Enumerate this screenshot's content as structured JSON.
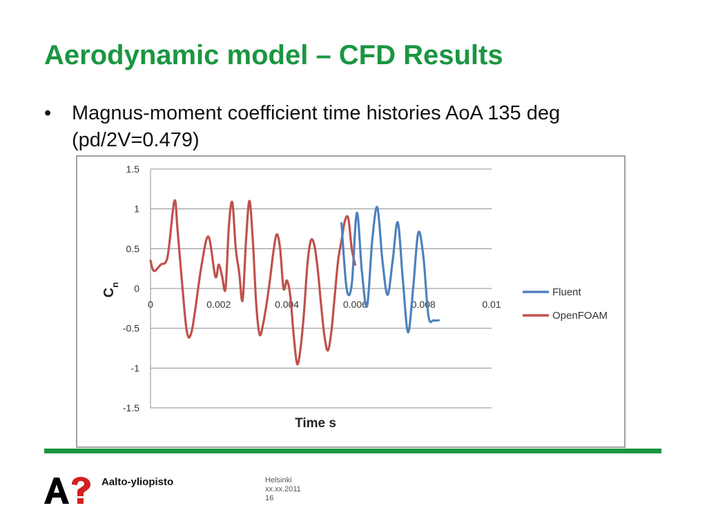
{
  "slide": {
    "title": "Aerodynamic model – CFD Results",
    "bullet": "Magnus-moment coefficient time histories AoA 135 deg (pd/2V=0.479)",
    "bullet_symbol": "•"
  },
  "footer": {
    "brand": "Aalto-yliopisto",
    "city": "Helsinki",
    "date": "xx.xx.2011",
    "page": "16",
    "accent_color": "#1a9641"
  },
  "chart_data": {
    "type": "line",
    "title": "",
    "xlabel": "Time s",
    "ylabel": "Cn",
    "xlim": [
      0,
      0.01
    ],
    "ylim": [
      -1.5,
      1.5
    ],
    "x_ticks": [
      "0",
      "0.002",
      "0.004",
      "0.006",
      "0.008",
      "0.01"
    ],
    "y_ticks": [
      "1.5",
      "1",
      "0.5",
      "0",
      "-0.5",
      "-1",
      "-1.5"
    ],
    "grid": "horizontal",
    "legend_position": "right",
    "series": [
      {
        "name": "Fluent",
        "color": "#4f81bd",
        "x": [
          0.0056,
          0.00575,
          0.0059,
          0.00605,
          0.0062,
          0.00635,
          0.0065,
          0.00665,
          0.0068,
          0.00695,
          0.0071,
          0.00725,
          0.0074,
          0.00755,
          0.0077,
          0.00785,
          0.008,
          0.00815,
          0.0083,
          0.00845
        ],
        "y": [
          0.82,
          0.0,
          0.05,
          0.95,
          0.2,
          -0.22,
          0.6,
          1.02,
          0.35,
          -0.08,
          0.35,
          0.83,
          0.1,
          -0.55,
          0.0,
          0.7,
          0.4,
          -0.35,
          -0.4,
          -0.4
        ]
      },
      {
        "name": "OpenFOAM",
        "color": "#c0504d",
        "x": [
          0.0,
          0.0001,
          0.0003,
          0.0005,
          0.0007,
          0.0008,
          0.001,
          0.0011,
          0.0012,
          0.0013,
          0.0015,
          0.0017,
          0.0019,
          0.002,
          0.0021,
          0.0022,
          0.0023,
          0.0024,
          0.0025,
          0.0026,
          0.0027,
          0.0028,
          0.0029,
          0.003,
          0.0031,
          0.0032,
          0.0033,
          0.0034,
          0.0035,
          0.0036,
          0.0037,
          0.0038,
          0.0039,
          0.004,
          0.0041,
          0.0042,
          0.0043,
          0.0044,
          0.0045,
          0.0046,
          0.0047,
          0.0048,
          0.0049,
          0.005,
          0.0051,
          0.0052,
          0.0053,
          0.0054,
          0.0055,
          0.0056,
          0.0057,
          0.0058,
          0.0059,
          0.006
        ],
        "y": [
          0.35,
          0.22,
          0.3,
          0.4,
          1.1,
          0.7,
          -0.3,
          -0.6,
          -0.55,
          -0.3,
          0.3,
          0.65,
          0.15,
          0.3,
          0.15,
          0.0,
          0.8,
          1.08,
          0.5,
          0.2,
          -0.15,
          0.6,
          1.1,
          0.6,
          -0.2,
          -0.58,
          -0.45,
          -0.2,
          0.1,
          0.45,
          0.68,
          0.5,
          0.0,
          0.1,
          -0.1,
          -0.6,
          -0.95,
          -0.75,
          -0.3,
          0.3,
          0.6,
          0.55,
          0.25,
          -0.2,
          -0.6,
          -0.78,
          -0.55,
          -0.1,
          0.35,
          0.6,
          0.85,
          0.88,
          0.5,
          0.3
        ]
      }
    ]
  }
}
